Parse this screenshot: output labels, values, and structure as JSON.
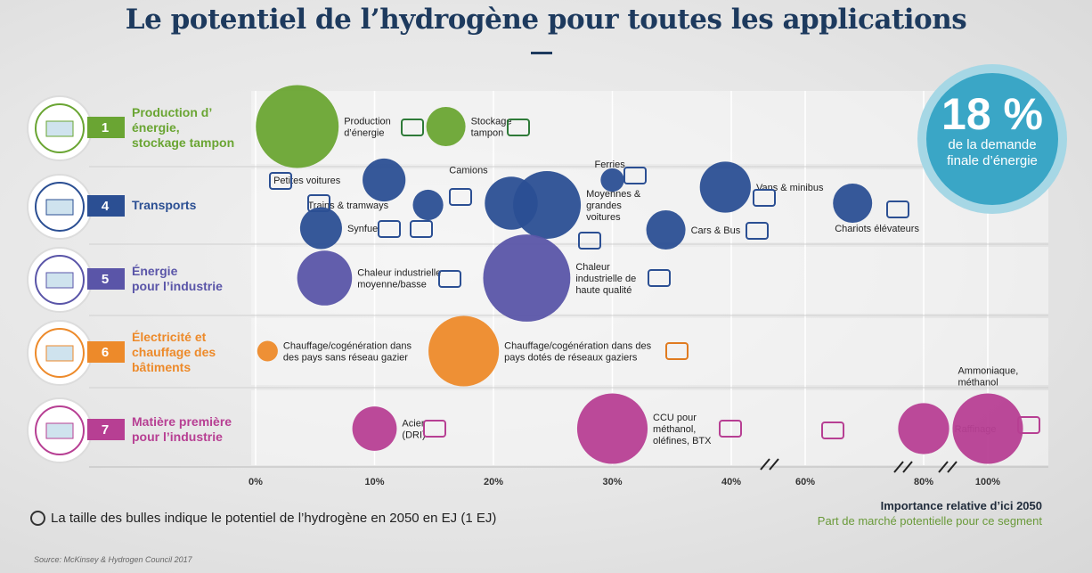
{
  "title": "Le potentiel de l’hydrogène pour toutes les applications",
  "badge": {
    "value": "18 %",
    "line1": "de la demande",
    "line2": "finale d’énergie",
    "color": "#3aa6c6"
  },
  "legend_note": "La taille des bulles indique le potentiel de l’hydrogène en 2050 en EJ (1 EJ)",
  "source": "Source: McKinsey & Hydrogen Council 2017",
  "axis_title": "Importance relative d’ici 2050",
  "axis_subtitle": "Part de marché potentielle pour ce segment",
  "chart_data": {
    "type": "bubble",
    "x_ticks": [
      "0%",
      "10%",
      "20%",
      "30%",
      "40%",
      "60%",
      "80%",
      "100%"
    ],
    "x_scale": "broken",
    "categories": [
      {
        "num": "1",
        "lines": [
          "Production d’",
          "énergie,",
          "stockage tampon"
        ],
        "color": "#6aa533"
      },
      {
        "num": "4",
        "lines": [
          "Transports"
        ],
        "color": "#2b4f93"
      },
      {
        "num": "5",
        "lines": [
          "Énergie",
          "pour l’industrie"
        ],
        "color": "#5a55a8"
      },
      {
        "num": "6",
        "lines": [
          "Électricité et",
          "chauffage des",
          "bâtiments"
        ],
        "color": "#ed8a2a"
      },
      {
        "num": "7",
        "lines": [
          "Matière première",
          "pour l’industrie"
        ],
        "color": "#b73f93"
      }
    ],
    "bubbles": [
      {
        "cat": 0,
        "label": [
          "Production",
          "d’énergie"
        ],
        "x": 3.5,
        "size": 1.6
      },
      {
        "cat": 0,
        "label": [
          "Stockage",
          "tampon"
        ],
        "x": 16,
        "size": 0.25
      },
      {
        "cat": 1,
        "label": [
          "Petites voitures"
        ],
        "x": 10.8,
        "size": 0.32
      },
      {
        "cat": 1,
        "label": [
          "Trains & tramways"
        ],
        "x": 14.5,
        "size": 0.12
      },
      {
        "cat": 1,
        "label": [
          "Synfuel"
        ],
        "x": 5.5,
        "size": 0.3
      },
      {
        "cat": 1,
        "label": [
          "Camions"
        ],
        "x": 21.5,
        "size": 0.55
      },
      {
        "cat": 1,
        "label": [
          "Moyennes &",
          "grandes",
          "voitures"
        ],
        "x": 24.5,
        "size": 1.0
      },
      {
        "cat": 1,
        "label": [
          "Ferries"
        ],
        "x": 30,
        "size": 0.05
      },
      {
        "cat": 1,
        "label": [
          "Vans & minibus"
        ],
        "x": 39.5,
        "size": 0.5
      },
      {
        "cat": 1,
        "label": [
          "Cars & Bus"
        ],
        "x": 34.5,
        "size": 0.25
      },
      {
        "cat": 1,
        "label": [
          "Chariots élévateurs"
        ],
        "x": 68,
        "size": 0.25
      },
      {
        "cat": 2,
        "label": [
          "Chaleur industrielle",
          "moyenne/basse"
        ],
        "x": 5.8,
        "size": 0.6
      },
      {
        "cat": 2,
        "label": [
          "Chaleur",
          "industrielle de",
          "haute qualité"
        ],
        "x": 22.8,
        "size": 1.8
      },
      {
        "cat": 3,
        "label": [
          "Chauffage/cogénération dans",
          "des pays sans réseau gazier"
        ],
        "x": 1,
        "size": 0.03
      },
      {
        "cat": 3,
        "label": [
          "Chauffage/cogénération dans des",
          "pays dotés de réseaux gaziers"
        ],
        "x": 17.5,
        "size": 1.1
      },
      {
        "cat": 4,
        "label": [
          "Acier",
          "(DRI)"
        ],
        "x": 10,
        "size": 0.35
      },
      {
        "cat": 4,
        "label": [
          "CCU pour",
          "méthanol,",
          "oléfines, BTX"
        ],
        "x": 30,
        "size": 1.1
      },
      {
        "cat": 4,
        "label": [
          "Raffinage"
        ],
        "x": 80,
        "size": 0.5
      },
      {
        "cat": 4,
        "label": [
          "Ammoniaque,",
          "méthanol"
        ],
        "x": 100,
        "size": 1.1
      }
    ]
  }
}
